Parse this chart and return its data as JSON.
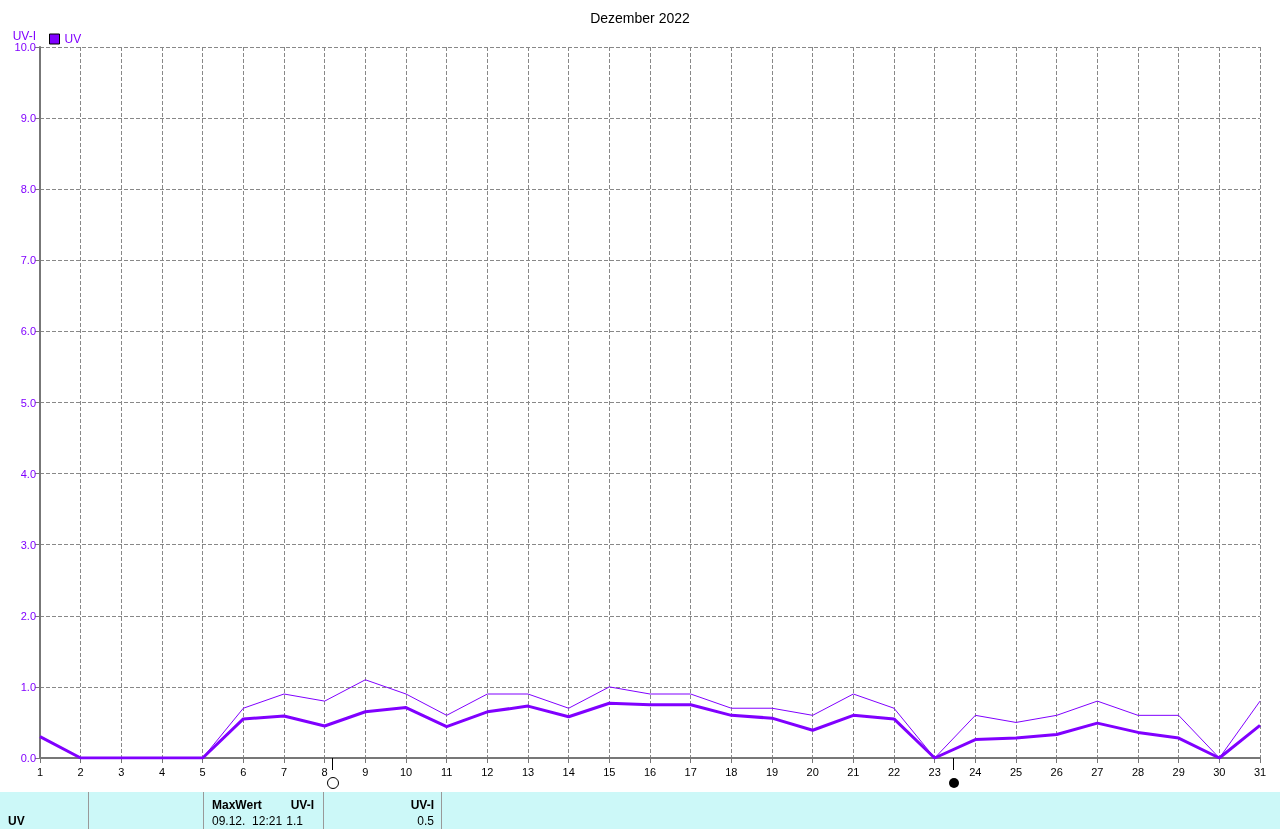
{
  "chart_data": {
    "type": "line",
    "title": "Dezember 2022",
    "ylabel": "UV-I",
    "x": [
      1,
      2,
      3,
      4,
      5,
      6,
      7,
      8,
      9,
      10,
      11,
      12,
      13,
      14,
      15,
      16,
      17,
      18,
      19,
      20,
      21,
      22,
      23,
      24,
      25,
      26,
      27,
      28,
      29,
      30,
      31
    ],
    "series": [
      {
        "name": "UV",
        "color": "#8000ff",
        "values": [
          0.3,
          0,
          0,
          0,
          0,
          0.55,
          0.59,
          0.45,
          0.65,
          0.71,
          0.44,
          0.65,
          0.73,
          0.58,
          0.77,
          0.75,
          0.75,
          0.6,
          0.56,
          0.39,
          0.6,
          0.55,
          0,
          0.26,
          0.28,
          0.33,
          0.49,
          0.36,
          0.28,
          0,
          0.46
        ]
      },
      {
        "color": "#8000ff",
        "values": [
          0.3,
          0,
          0,
          0,
          0,
          0.7,
          0.9,
          0.8,
          1.1,
          0.9,
          0.6,
          0.9,
          0.9,
          0.7,
          1.0,
          0.9,
          0.9,
          0.7,
          0.7,
          0.6,
          0.9,
          0.7,
          0,
          0.6,
          0.5,
          0.6,
          0.8,
          0.6,
          0.6,
          0,
          0.8
        ]
      }
    ],
    "xlim": [
      1,
      31
    ],
    "xticks": [
      1,
      2,
      3,
      4,
      5,
      6,
      7,
      8,
      9,
      10,
      11,
      12,
      13,
      14,
      15,
      16,
      17,
      18,
      19,
      20,
      21,
      22,
      23,
      24,
      25,
      26,
      27,
      28,
      29,
      30,
      31
    ],
    "ylim": [
      0,
      10
    ],
    "yticks": [
      {
        "value": 0,
        "label": "0.0"
      },
      {
        "value": 1,
        "label": "1.0"
      },
      {
        "value": 2,
        "label": "2.0"
      },
      {
        "value": 3,
        "label": "3.0"
      },
      {
        "value": 4,
        "label": "4.0"
      },
      {
        "value": 5,
        "label": "5.0"
      },
      {
        "value": 6,
        "label": "6.0"
      },
      {
        "value": 7,
        "label": "7.0"
      },
      {
        "value": 8,
        "label": "8.0"
      },
      {
        "value": 9,
        "label": "9.0"
      },
      {
        "value": 10,
        "label": "10.0"
      }
    ],
    "grid": true,
    "legend": "top left",
    "marker": "none",
    "line_style": "solid",
    "annotations": [
      "UV",
      "MaxWert",
      "UV-I",
      "09.12.  12:21",
      "1.1",
      "UV-I",
      "0.5"
    ]
  }
}
